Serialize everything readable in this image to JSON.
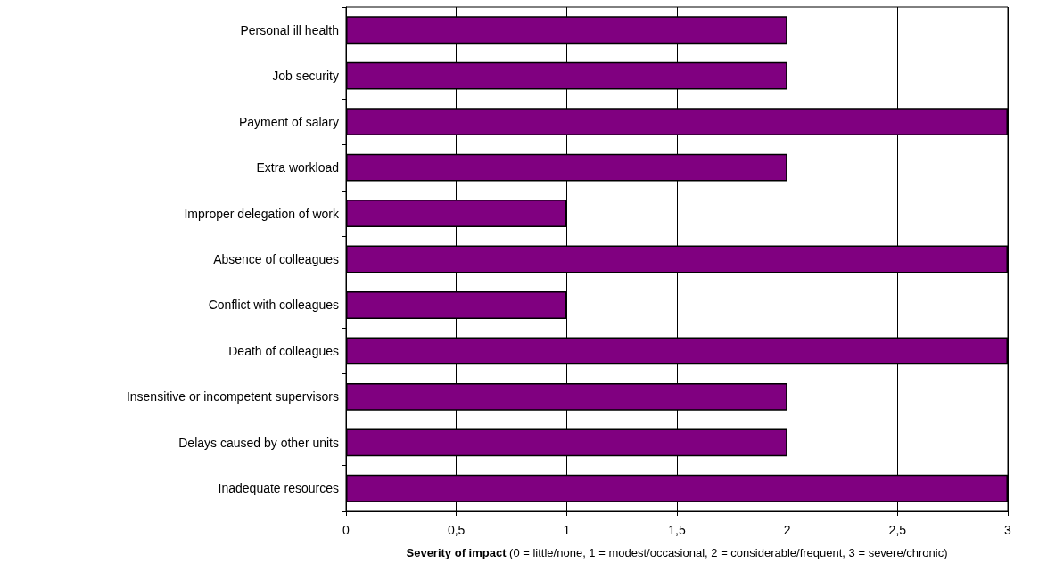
{
  "chart_data": {
    "type": "bar",
    "orientation": "horizontal",
    "categories": [
      "Personal ill health",
      "Job security",
      "Payment of salary",
      "Extra workload",
      "Improper delegation of work",
      "Absence of colleagues",
      "Conflict with colleagues",
      "Death of colleagues",
      "Insensitive or incompetent supervisors",
      "Delays caused by other units",
      "Inadequate resources"
    ],
    "values": [
      2,
      2,
      3,
      2,
      1,
      3,
      1,
      3,
      2,
      2,
      3
    ],
    "color": "#800080",
    "xlim": [
      0,
      3
    ],
    "xticks": [
      0,
      {
        "value": 0.5,
        "label": "0,5"
      },
      1,
      {
        "value": 1.5,
        "label": "1,5"
      },
      2,
      {
        "value": 2.5,
        "label": "2,5"
      },
      3
    ],
    "xlabel": "Severity of impact (0 = little/none, 1 = modest/occasional, 2 = considerable/frequent, 3 = severe/chronic)",
    "grid": "x"
  }
}
